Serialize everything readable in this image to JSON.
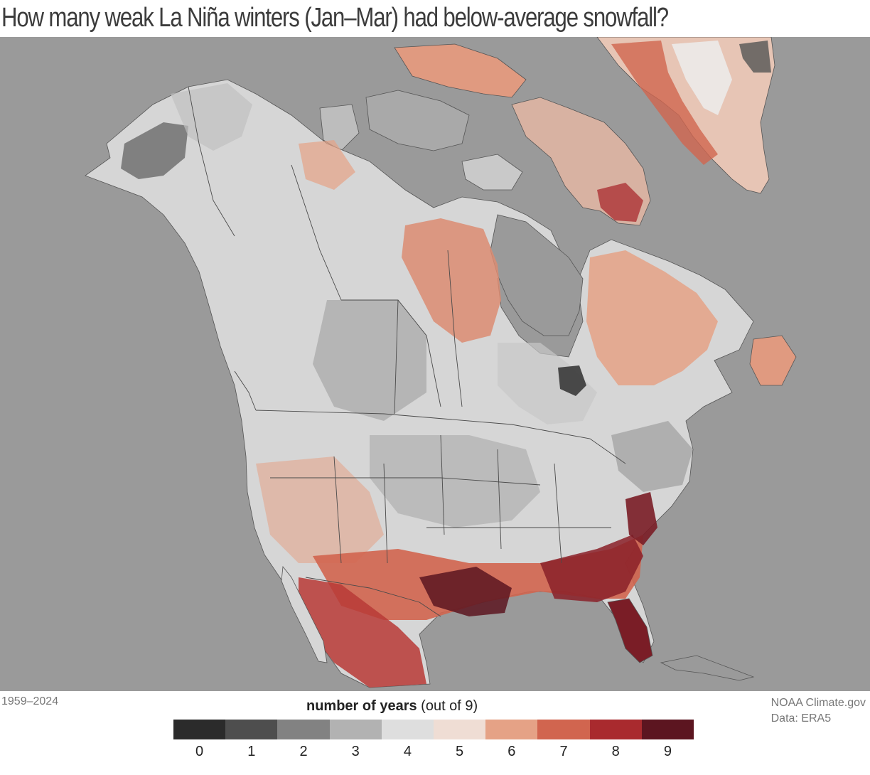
{
  "title": "How many weak La Niña winters (Jan–Mar) had below-average snowfall?",
  "period": "1959–2024",
  "legend": {
    "title_bold": "number of years",
    "title_rest": " (out of 9)",
    "classes": [
      {
        "label": "0",
        "color": "#2b2b2b"
      },
      {
        "label": "1",
        "color": "#4e4e4e"
      },
      {
        "label": "2",
        "color": "#828282"
      },
      {
        "label": "3",
        "color": "#b2b2b2"
      },
      {
        "label": "4",
        "color": "#dedede"
      },
      {
        "label": "5",
        "color": "#efddd4"
      },
      {
        "label": "6",
        "color": "#e5a286"
      },
      {
        "label": "7",
        "color": "#d1654f"
      },
      {
        "label": "8",
        "color": "#a92a2e"
      },
      {
        "label": "9",
        "color": "#5c1520"
      }
    ]
  },
  "credits": {
    "source": "NOAA Climate.gov",
    "data": "Data: ERA5"
  },
  "colors": {
    "ocean": "#9a9a9a",
    "title_text": "#3c3c3c",
    "footer_text": "#777777"
  }
}
